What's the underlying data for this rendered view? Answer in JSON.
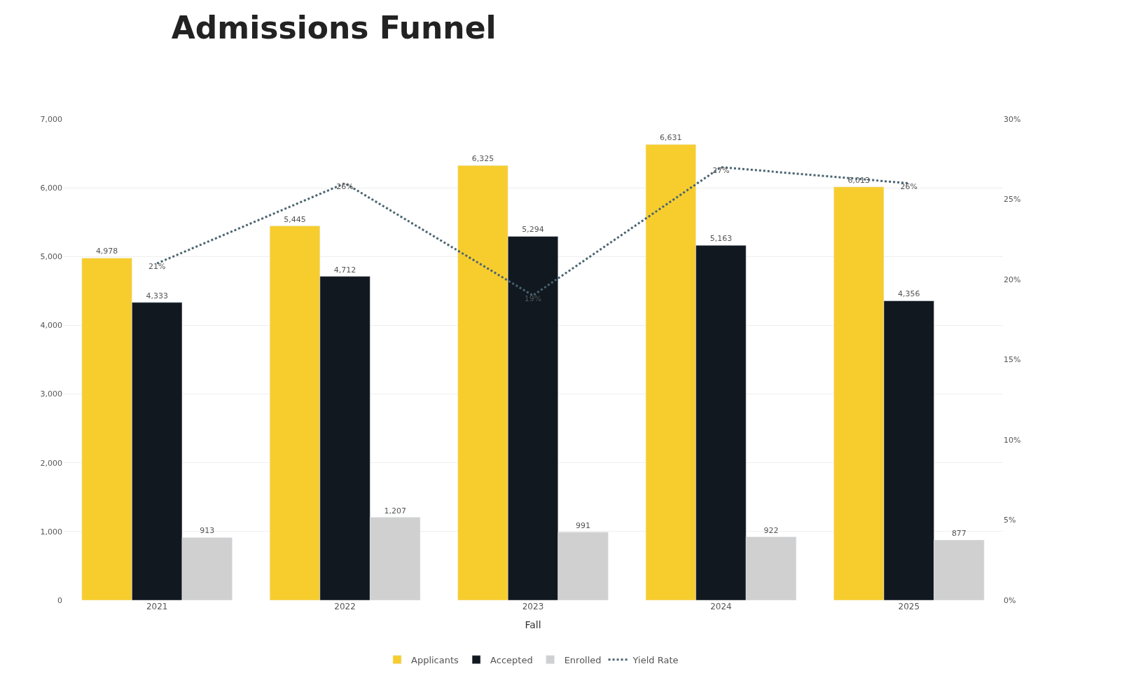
{
  "chart_data": {
    "type": "bar",
    "title": "Admissions Funnel",
    "xlabel": "Fall",
    "categories": [
      "2021",
      "2022",
      "2023",
      "2024",
      "2025"
    ],
    "series": [
      {
        "name": "Applicants",
        "color": "#f7cd2e",
        "values": [
          4978,
          5445,
          6325,
          6631,
          6013
        ],
        "value_labels": [
          "4,978",
          "5,445",
          "6,325",
          "6,631",
          "6,013"
        ]
      },
      {
        "name": "Accepted",
        "color": "#111820",
        "values": [
          4333,
          4712,
          5294,
          5163,
          4356
        ],
        "value_labels": [
          "4,333",
          "4,712",
          "5,294",
          "5,163",
          "4,356"
        ]
      },
      {
        "name": "Enrolled",
        "color": "#d0d0d0",
        "values": [
          913,
          1207,
          991,
          922,
          877
        ],
        "value_labels": [
          "913",
          "1,207",
          "991",
          "922",
          "877"
        ]
      },
      {
        "name": "Yield Rate",
        "type": "line",
        "axis": "y2",
        "color": "#4a6470",
        "line_style": "dotted",
        "marker": "none",
        "values": [
          21,
          26,
          19,
          27,
          26
        ],
        "value_labels": [
          "21%",
          "26%",
          "19%",
          "27%",
          "26%"
        ]
      }
    ],
    "ylim": [
      0,
      7000
    ],
    "yticks": [
      {
        "value": 0,
        "label": "0"
      },
      {
        "value": 1000,
        "label": "1,000"
      },
      {
        "value": 2000,
        "label": "2,000"
      },
      {
        "value": 3000,
        "label": "3,000"
      },
      {
        "value": 4000,
        "label": "4,000"
      },
      {
        "value": 5000,
        "label": "5,000"
      },
      {
        "value": 6000,
        "label": "6,000"
      },
      {
        "value": 7000,
        "label": "7,000"
      }
    ],
    "y2lim": [
      0,
      30
    ],
    "y2ticks": [
      {
        "value": 0,
        "label": "0%"
      },
      {
        "value": 5,
        "label": "5%"
      },
      {
        "value": 10,
        "label": "10%"
      },
      {
        "value": 15,
        "label": "15%"
      },
      {
        "value": 20,
        "label": "20%"
      },
      {
        "value": 25,
        "label": "25%"
      },
      {
        "value": 30,
        "label": "30%"
      }
    ],
    "grid": "y",
    "legend": "bottom"
  }
}
